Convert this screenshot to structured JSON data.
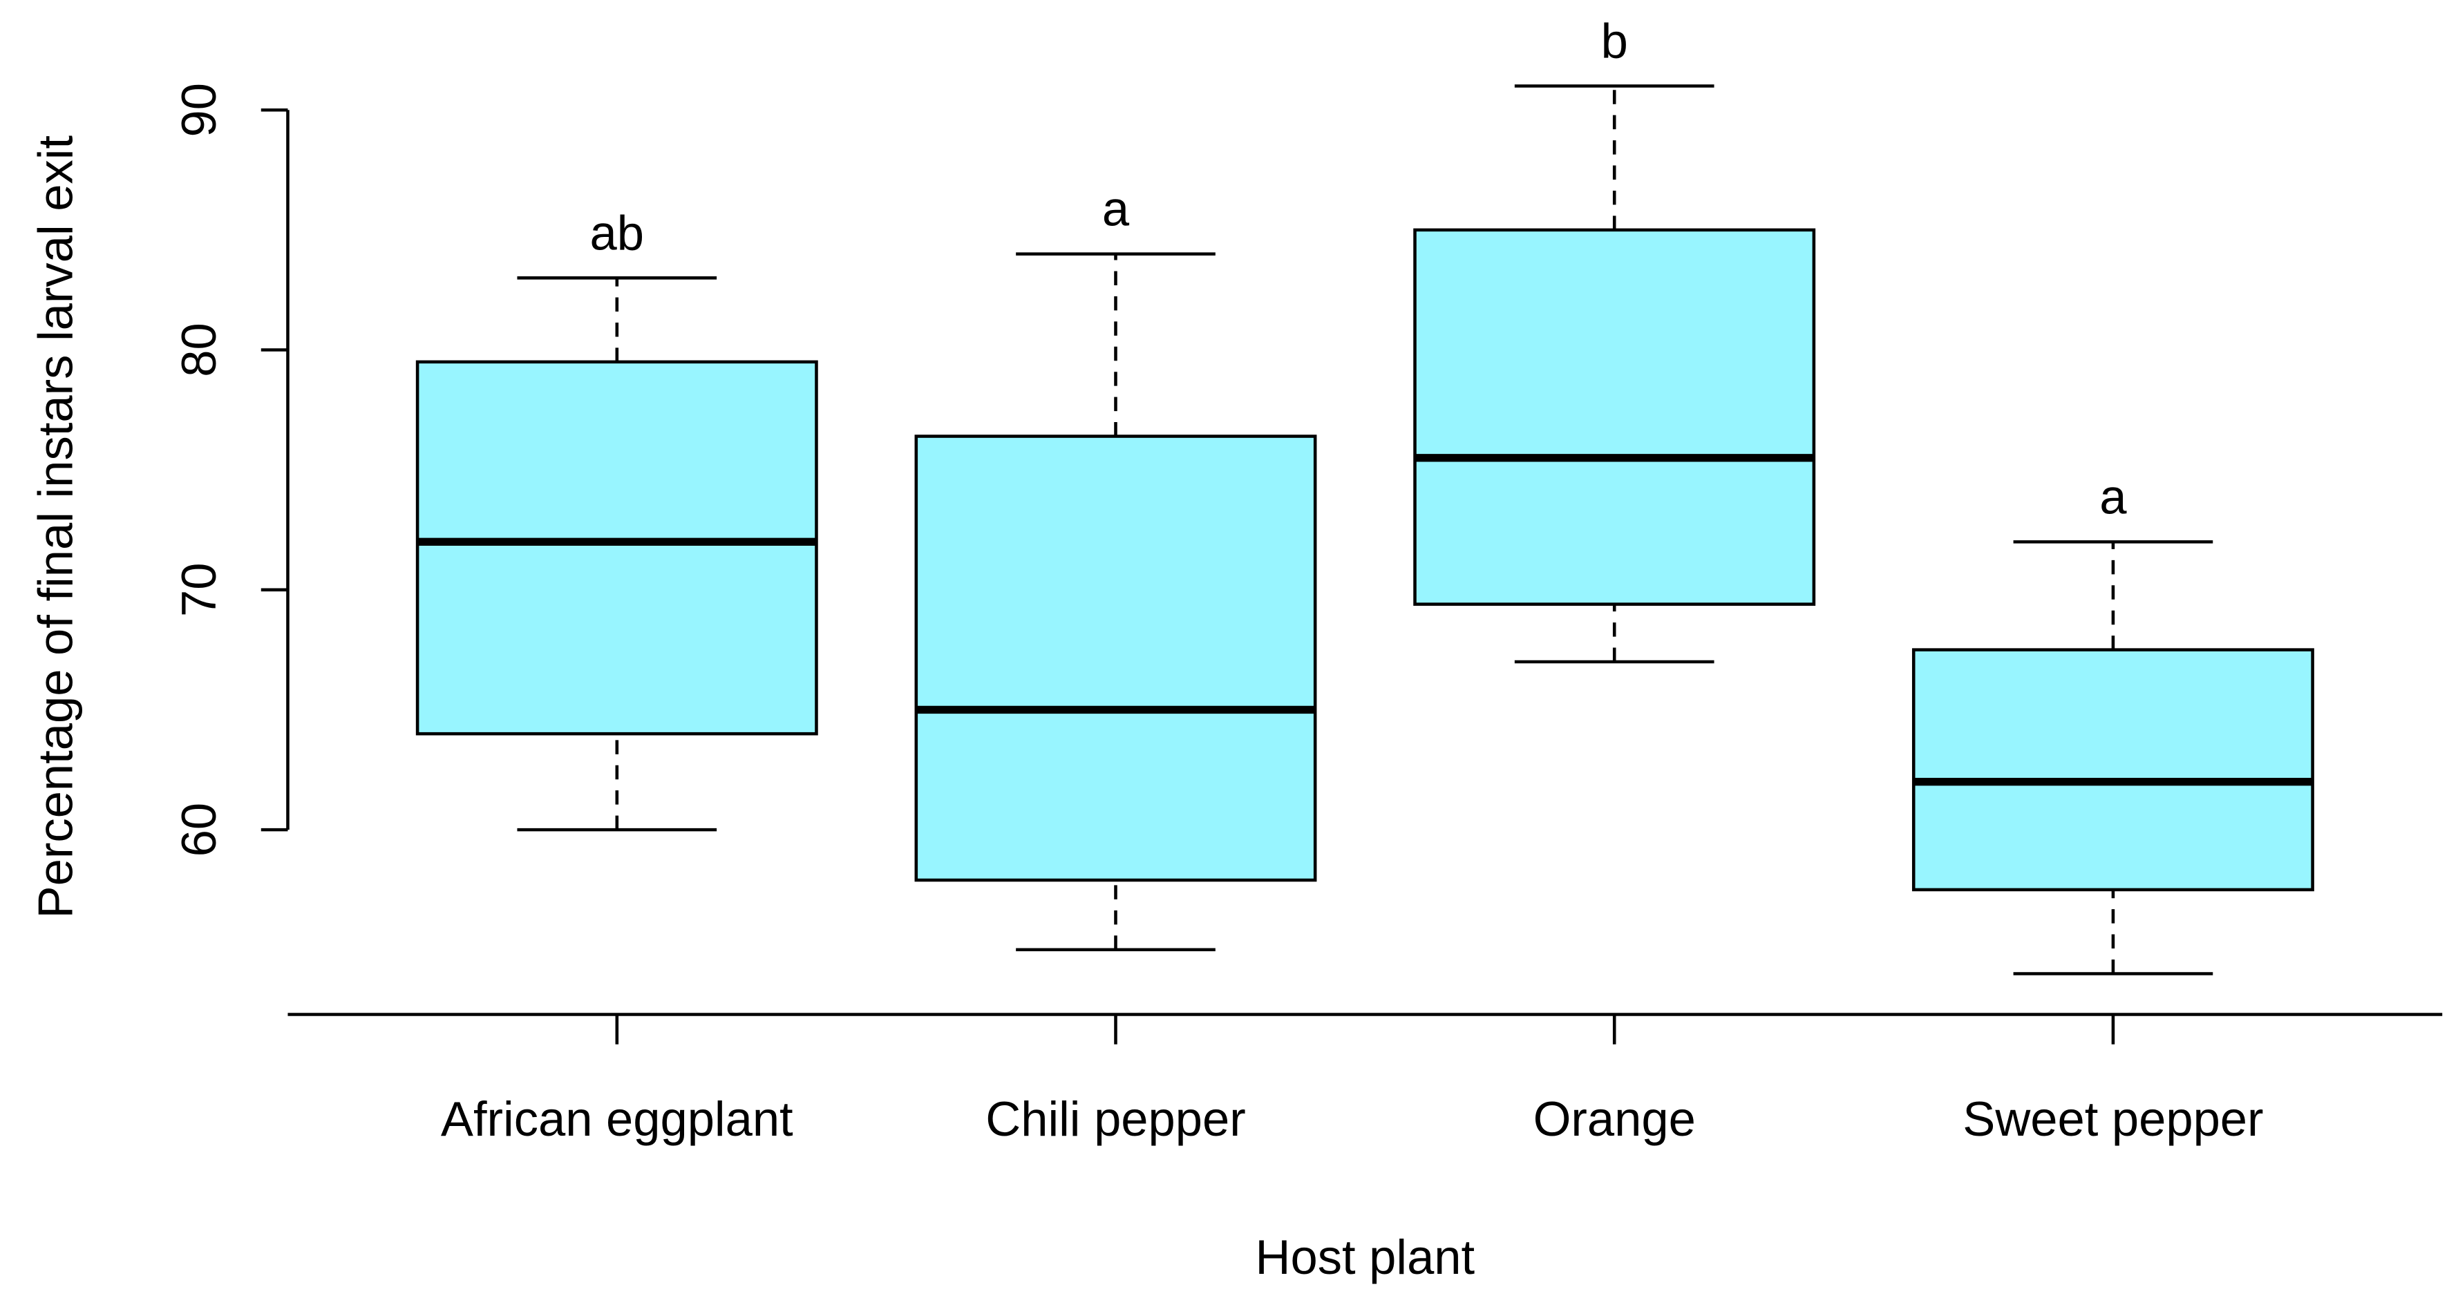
{
  "chart_data": {
    "type": "box",
    "x_label": "Host plant",
    "y_label": "Percentage of final instars larval exit",
    "categories": [
      "African eggplant",
      "Chili pepper",
      "Orange",
      "Sweet pepper"
    ],
    "whisker_low": [
      60,
      55,
      67,
      54
    ],
    "q1": [
      64,
      57.9,
      69.4,
      57.5
    ],
    "median": [
      72,
      65,
      75.5,
      62
    ],
    "q3": [
      79.5,
      76.4,
      85,
      67.5
    ],
    "whisker_high": [
      83,
      84,
      91,
      72
    ],
    "annotations": [
      "ab",
      "a",
      "b",
      "a"
    ],
    "color": "#98f5ff",
    "ylim": [
      52.3,
      91.7
    ],
    "yticks": [
      60,
      70,
      80,
      90
    ]
  }
}
